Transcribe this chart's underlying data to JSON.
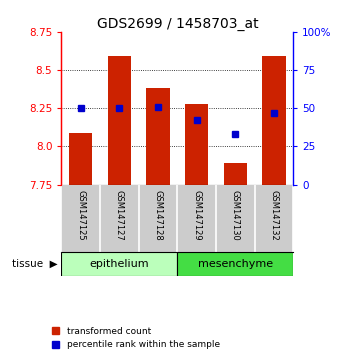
{
  "title": "GDS2699 / 1458703_at",
  "samples": [
    "GSM147125",
    "GSM147127",
    "GSM147128",
    "GSM147129",
    "GSM147130",
    "GSM147132"
  ],
  "transformed_counts": [
    8.09,
    8.59,
    8.38,
    8.28,
    7.89,
    8.59
  ],
  "percentile_ranks": [
    50,
    50,
    51,
    42,
    33,
    47
  ],
  "y_min": 7.75,
  "y_max": 8.75,
  "y_ticks": [
    7.75,
    8.0,
    8.25,
    8.5,
    8.75
  ],
  "y2_ticks": [
    0,
    25,
    50,
    75,
    100
  ],
  "bar_color": "#cc2200",
  "dot_color": "#0000cc",
  "epithelium_color": "#bbffbb",
  "mesenchyme_color": "#44dd44",
  "sample_bg_color": "#cccccc",
  "legend_red": "transformed count",
  "legend_blue": "percentile rank within the sample",
  "title_fontsize": 10,
  "tick_fontsize": 7.5
}
